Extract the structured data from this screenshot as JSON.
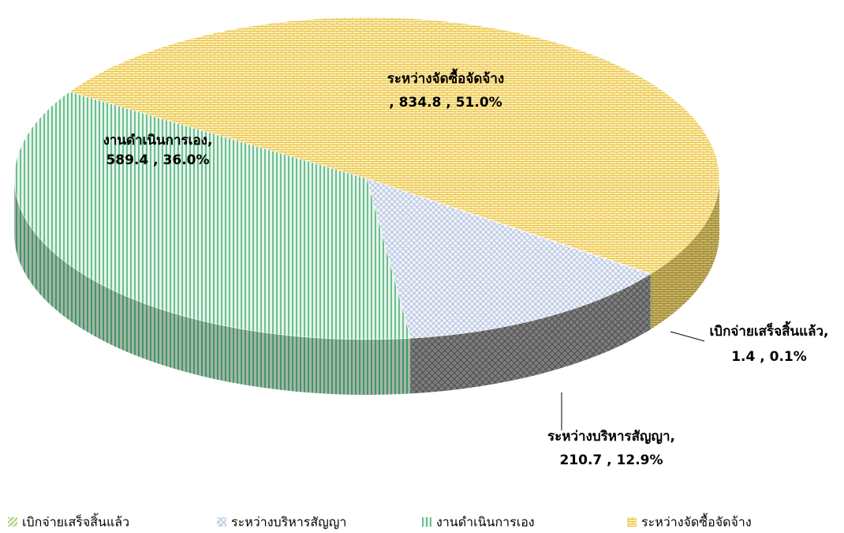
{
  "chart_data": {
    "type": "pie3d",
    "categories": [
      "เบิกจ่ายเสร็จสิ้นแล้ว",
      "ระหว่างบริหารสัญญา",
      "งานดำเนินการเอง",
      "ระหว่างจัดซื้อจัดจ้าง"
    ],
    "values": [
      1.4,
      210.7,
      589.4,
      834.8
    ],
    "percents": [
      0.1,
      12.9,
      36.0,
      51.0
    ],
    "data_labels": [
      {
        "name": "เบิกจ่ายเสร็จสิ้นแล้ว,",
        "text": "1.4 , 0.1%"
      },
      {
        "name": "ระหว่างบริหารสัญญา,",
        "text": "210.7 , 12.9%"
      },
      {
        "name": "งานดำเนินการเอง,",
        "text": "589.4 , 36.0%"
      },
      {
        "name": "ระหว่างจัดซื้อจัดจ้าง",
        "text": ", 834.8 , 51.0%"
      }
    ],
    "colors": [
      "#9dc56a",
      "#a9b8d8",
      "#4caf74",
      "#e8c24a"
    ],
    "legend": "bottom"
  }
}
